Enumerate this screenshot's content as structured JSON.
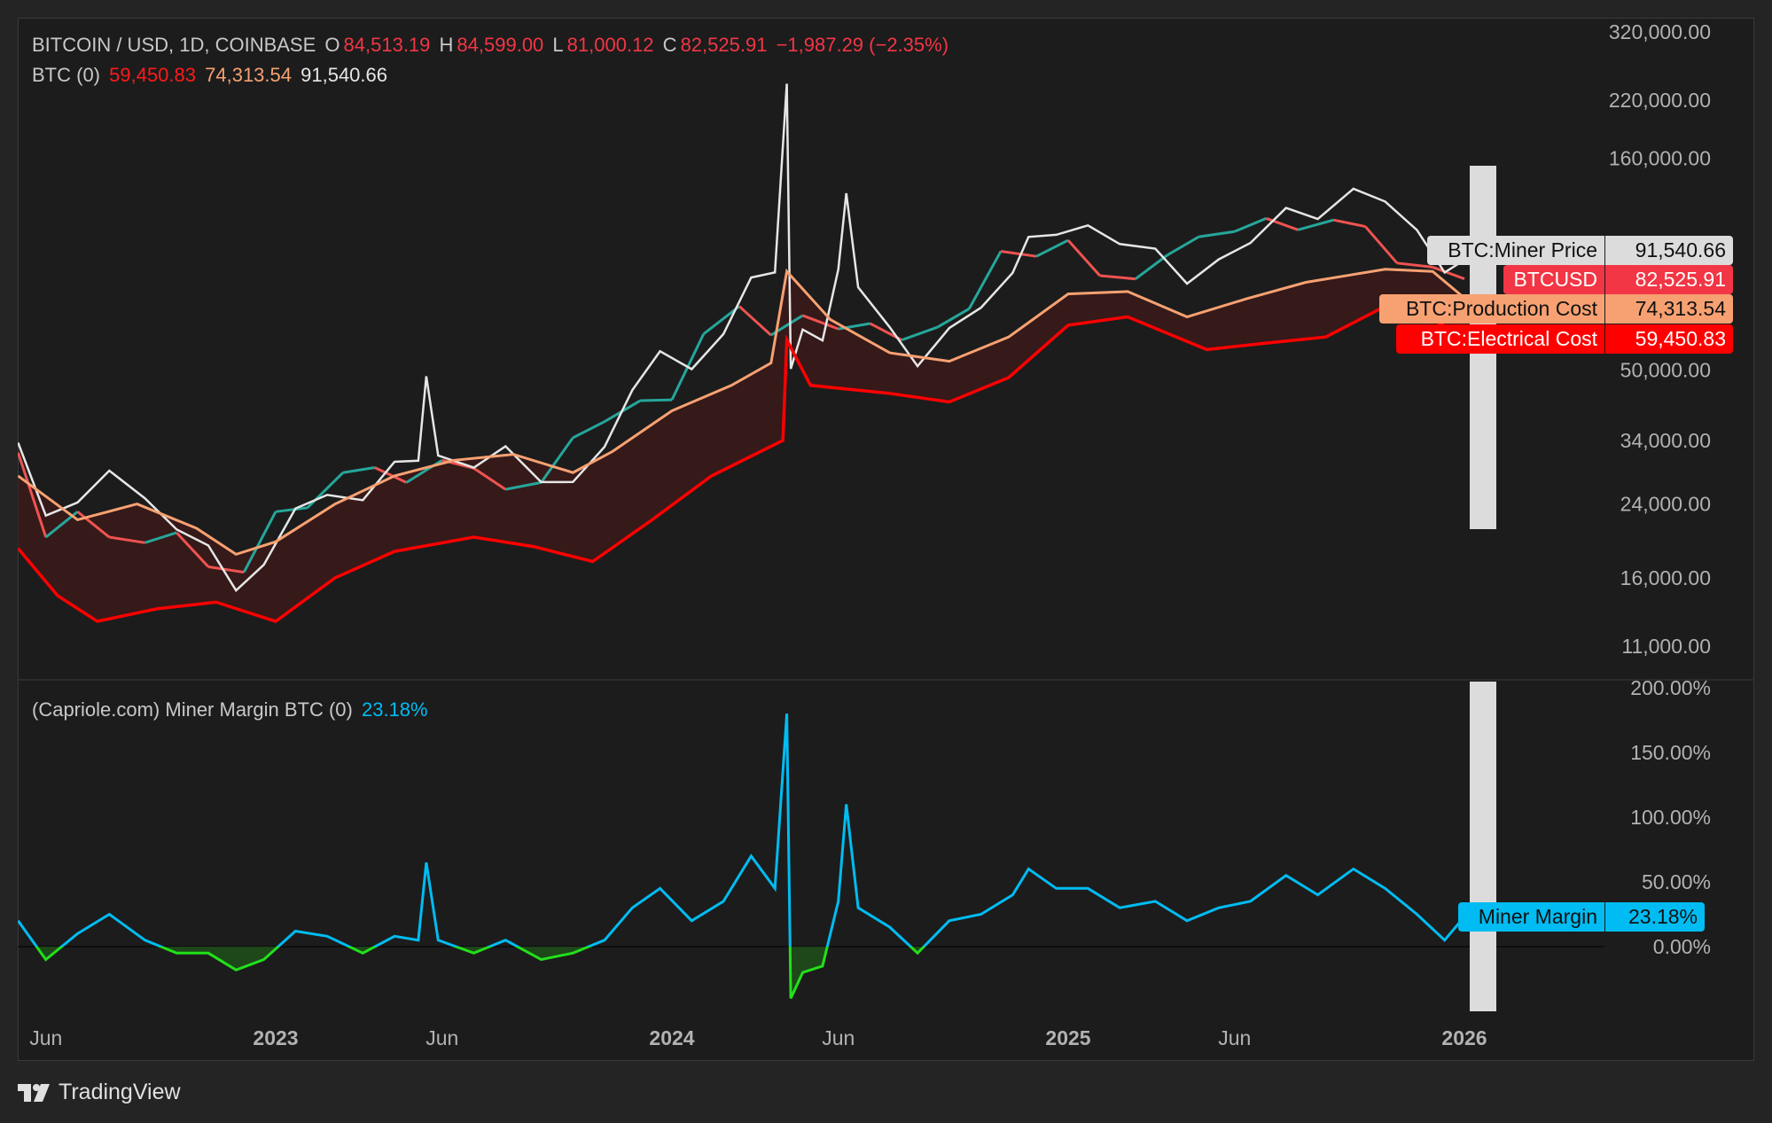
{
  "header": {
    "symbol": "BITCOIN / USD, 1D, COINBASE",
    "o_label": "O",
    "open": "84,513.19",
    "h_label": "H",
    "high": "84,599.00",
    "l_label": "L",
    "low": "81,000.12",
    "c_label": "C",
    "close": "82,525.91",
    "change": "−1,987.29 (−2.35%)",
    "indicator_name": "BTC (0)",
    "ind_electrical": "59,450.83",
    "ind_production": "74,313.54",
    "ind_miner": "91,540.66"
  },
  "lower_pane": {
    "title": "(Capriole.com) Miner Margin BTC (0)",
    "value": "23.18%"
  },
  "price_tags": [
    {
      "name": "BTC:Miner Price",
      "value": "91,540.66",
      "bg": "#dcdcdc",
      "fg": "#111111"
    },
    {
      "name": "BTCUSD",
      "value": "82,525.91",
      "bg": "#f23645",
      "fg": "#ffffff"
    },
    {
      "name": "BTC:Production Cost",
      "value": "74,313.54",
      "bg": "#f7a172",
      "fg": "#111111"
    },
    {
      "name": "BTC:Electrical Cost",
      "value": "59,450.83",
      "bg": "#ff0000",
      "fg": "#ffffff"
    }
  ],
  "margin_tag": {
    "name": "Miner Margin",
    "value": "23.18%",
    "bg": "#00bcf2",
    "fg": "#111111"
  },
  "brand": "TradingView",
  "colors": {
    "up": "#26a69a",
    "down": "#ef5350",
    "miner": "#e6e6e6",
    "production": "#f7a172",
    "electrical": "#ff0000",
    "band": "#3a1a1a",
    "margin": "#00bcf2",
    "margin_negative": "#22e01a"
  },
  "chart_data": [
    {
      "type": "line",
      "title": "BITCOIN / USD, 1D, COINBASE",
      "yscale": "log",
      "ylim": [
        11000,
        320000
      ],
      "y_ticks": [
        "320,000.00",
        "220,000.00",
        "160,000.00",
        "50,000.00",
        "34,000.00",
        "24,000.00",
        "16,000.00",
        "11,000.00"
      ],
      "y_tick_values": [
        320000,
        220000,
        160000,
        50000,
        34000,
        24000,
        16000,
        11000
      ],
      "x_ticks": [
        {
          "label": "Jun",
          "t": 2022.42
        },
        {
          "label": "2023",
          "t": 2023.0,
          "bold": true
        },
        {
          "label": "Jun",
          "t": 2023.42
        },
        {
          "label": "2024",
          "t": 2024.0,
          "bold": true
        },
        {
          "label": "Jun",
          "t": 2024.42
        },
        {
          "label": "2025",
          "t": 2025.0,
          "bold": true
        },
        {
          "label": "Jun",
          "t": 2025.42
        },
        {
          "label": "2026",
          "t": 2026.0,
          "bold": true
        }
      ],
      "series": {
        "btcusd": [
          [
            2022.35,
            31800
          ],
          [
            2022.42,
            20000
          ],
          [
            2022.5,
            23000
          ],
          [
            2022.58,
            20000
          ],
          [
            2022.67,
            19400
          ],
          [
            2022.75,
            20500
          ],
          [
            2022.83,
            17000
          ],
          [
            2022.92,
            16500
          ],
          [
            2023.0,
            23000
          ],
          [
            2023.08,
            23500
          ],
          [
            2023.17,
            28500
          ],
          [
            2023.25,
            29300
          ],
          [
            2023.33,
            27000
          ],
          [
            2023.42,
            30500
          ],
          [
            2023.5,
            29200
          ],
          [
            2023.58,
            26000
          ],
          [
            2023.67,
            27000
          ],
          [
            2023.75,
            34500
          ],
          [
            2023.83,
            37700
          ],
          [
            2023.92,
            42300
          ],
          [
            2024.0,
            42500
          ],
          [
            2024.08,
            61000
          ],
          [
            2024.17,
            71000
          ],
          [
            2024.25,
            60600
          ],
          [
            2024.33,
            67500
          ],
          [
            2024.42,
            62700
          ],
          [
            2024.5,
            64600
          ],
          [
            2024.58,
            59000
          ],
          [
            2024.67,
            63300
          ],
          [
            2024.75,
            70000
          ],
          [
            2024.83,
            96000
          ],
          [
            2024.92,
            93400
          ],
          [
            2025.0,
            102000
          ],
          [
            2025.08,
            84000
          ],
          [
            2025.17,
            82500
          ],
          [
            2025.25,
            94000
          ],
          [
            2025.33,
            104000
          ],
          [
            2025.42,
            107000
          ],
          [
            2025.5,
            115000
          ],
          [
            2025.58,
            108000
          ],
          [
            2025.67,
            114000
          ],
          [
            2025.75,
            110000
          ],
          [
            2025.83,
            90000
          ],
          [
            2025.92,
            88000
          ],
          [
            2026.0,
            82525.91
          ]
        ],
        "production_cost": [
          [
            2022.35,
            28000
          ],
          [
            2022.5,
            22000
          ],
          [
            2022.65,
            24000
          ],
          [
            2022.8,
            21000
          ],
          [
            2022.9,
            18200
          ],
          [
            2023.0,
            19500
          ],
          [
            2023.15,
            24000
          ],
          [
            2023.3,
            28000
          ],
          [
            2023.45,
            30500
          ],
          [
            2023.6,
            31500
          ],
          [
            2023.75,
            28500
          ],
          [
            2023.85,
            32000
          ],
          [
            2024.0,
            40000
          ],
          [
            2024.15,
            46000
          ],
          [
            2024.25,
            52000
          ],
          [
            2024.29,
            86000
          ],
          [
            2024.4,
            66000
          ],
          [
            2024.55,
            55000
          ],
          [
            2024.7,
            52500
          ],
          [
            2024.85,
            60000
          ],
          [
            2025.0,
            76000
          ],
          [
            2025.15,
            77000
          ],
          [
            2025.3,
            67000
          ],
          [
            2025.45,
            74000
          ],
          [
            2025.6,
            81000
          ],
          [
            2025.8,
            87000
          ],
          [
            2025.92,
            86000
          ],
          [
            2026.0,
            74313.54
          ]
        ],
        "electrical_cost": [
          [
            2022.35,
            18800
          ],
          [
            2022.45,
            14500
          ],
          [
            2022.55,
            12600
          ],
          [
            2022.7,
            13500
          ],
          [
            2022.85,
            14000
          ],
          [
            2023.0,
            12600
          ],
          [
            2023.15,
            16000
          ],
          [
            2023.3,
            18500
          ],
          [
            2023.5,
            20000
          ],
          [
            2023.65,
            19000
          ],
          [
            2023.8,
            17500
          ],
          [
            2023.95,
            22000
          ],
          [
            2024.1,
            28000
          ],
          [
            2024.28,
            34000
          ],
          [
            2024.29,
            59000
          ],
          [
            2024.35,
            46000
          ],
          [
            2024.55,
            44000
          ],
          [
            2024.7,
            42000
          ],
          [
            2024.85,
            48000
          ],
          [
            2025.0,
            64000
          ],
          [
            2025.15,
            67000
          ],
          [
            2025.35,
            56000
          ],
          [
            2025.5,
            58000
          ],
          [
            2025.65,
            60000
          ],
          [
            2025.8,
            71000
          ],
          [
            2025.9,
            68000
          ],
          [
            2026.0,
            59450.83
          ]
        ]
      }
    },
    {
      "type": "line",
      "title": "(Capriole.com) Miner Margin BTC (0)",
      "ylim": [
        -50,
        200
      ],
      "y_ticks": [
        "200.00%",
        "150.00%",
        "100.00%",
        "50.00%",
        "0.00%"
      ],
      "y_tick_values": [
        200,
        150,
        100,
        50,
        0
      ],
      "series": {
        "miner_margin_pct": [
          [
            2022.35,
            20
          ],
          [
            2022.42,
            -10
          ],
          [
            2022.5,
            10
          ],
          [
            2022.58,
            25
          ],
          [
            2022.67,
            5
          ],
          [
            2022.75,
            -5
          ],
          [
            2022.83,
            -5
          ],
          [
            2022.9,
            -18
          ],
          [
            2022.97,
            -10
          ],
          [
            2023.05,
            12
          ],
          [
            2023.13,
            8
          ],
          [
            2023.22,
            -5
          ],
          [
            2023.3,
            8
          ],
          [
            2023.36,
            5
          ],
          [
            2023.38,
            65
          ],
          [
            2023.41,
            5
          ],
          [
            2023.5,
            -5
          ],
          [
            2023.58,
            5
          ],
          [
            2023.67,
            -10
          ],
          [
            2023.75,
            -5
          ],
          [
            2023.83,
            5
          ],
          [
            2023.9,
            30
          ],
          [
            2023.97,
            45
          ],
          [
            2024.05,
            20
          ],
          [
            2024.13,
            35
          ],
          [
            2024.2,
            70
          ],
          [
            2024.26,
            45
          ],
          [
            2024.29,
            180
          ],
          [
            2024.3,
            -40
          ],
          [
            2024.33,
            -20
          ],
          [
            2024.38,
            -15
          ],
          [
            2024.42,
            35
          ],
          [
            2024.44,
            110
          ],
          [
            2024.47,
            30
          ],
          [
            2024.55,
            15
          ],
          [
            2024.62,
            -5
          ],
          [
            2024.7,
            20
          ],
          [
            2024.78,
            25
          ],
          [
            2024.86,
            40
          ],
          [
            2024.9,
            60
          ],
          [
            2024.97,
            45
          ],
          [
            2025.05,
            45
          ],
          [
            2025.13,
            30
          ],
          [
            2025.22,
            35
          ],
          [
            2025.3,
            20
          ],
          [
            2025.38,
            30
          ],
          [
            2025.46,
            35
          ],
          [
            2025.55,
            55
          ],
          [
            2025.63,
            40
          ],
          [
            2025.72,
            60
          ],
          [
            2025.8,
            45
          ],
          [
            2025.88,
            25
          ],
          [
            2025.95,
            5
          ],
          [
            2026.0,
            23.18
          ]
        ]
      }
    }
  ]
}
